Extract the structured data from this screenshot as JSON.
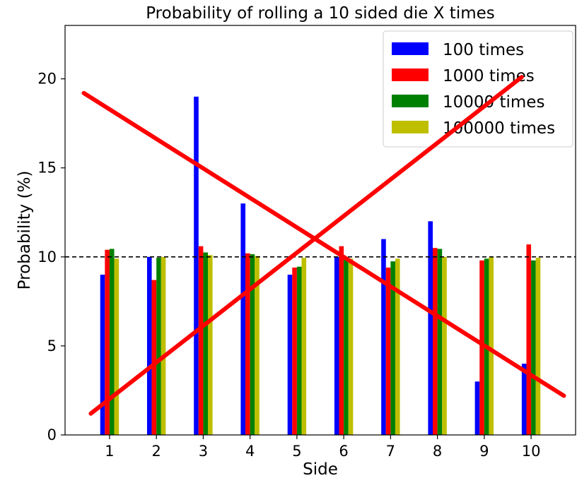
{
  "chart_data": {
    "type": "bar",
    "title": "Probability of rolling a 10 sided die X times",
    "xlabel": "Side",
    "ylabel": "Probability (%)",
    "categories": [
      "1",
      "2",
      "3",
      "4",
      "5",
      "6",
      "7",
      "8",
      "9",
      "10"
    ],
    "ylim": [
      0,
      23
    ],
    "yticks": [
      "0",
      "5",
      "10",
      "15",
      "20"
    ],
    "reference_line": {
      "y": 10,
      "style": "dashed",
      "color": "#000000"
    },
    "series": [
      {
        "name": "100 times",
        "color": "#0000ff",
        "values": [
          9,
          10,
          19,
          13,
          9,
          10,
          11,
          12,
          3,
          4
        ]
      },
      {
        "name": "1000 times",
        "color": "#ff0000",
        "values": [
          10.4,
          8.7,
          10.6,
          10.2,
          9.4,
          10.6,
          9.4,
          10.5,
          9.8,
          10.7
        ]
      },
      {
        "name": "10000 times",
        "color": "#008000",
        "values": [
          10.45,
          9.95,
          10.25,
          10.15,
          9.45,
          9.85,
          9.75,
          10.45,
          9.9,
          9.8
        ]
      },
      {
        "name": "100000 times",
        "color": "#bfbf00",
        "values": [
          9.9,
          10.0,
          10.1,
          10.05,
          9.95,
          9.9,
          9.9,
          10.0,
          10.0,
          9.95
        ]
      }
    ],
    "legend_position": "top-right",
    "grid": false,
    "annotation": {
      "type": "cross-out",
      "color": "#ff0000",
      "lines": [
        {
          "from": {
            "x": 0.45,
            "y": 19.2
          },
          "to": {
            "x": 10.7,
            "y": 2.2
          }
        },
        {
          "from": {
            "x": 0.6,
            "y": 1.2
          },
          "to": {
            "x": 9.8,
            "y": 20.1
          }
        }
      ]
    }
  }
}
